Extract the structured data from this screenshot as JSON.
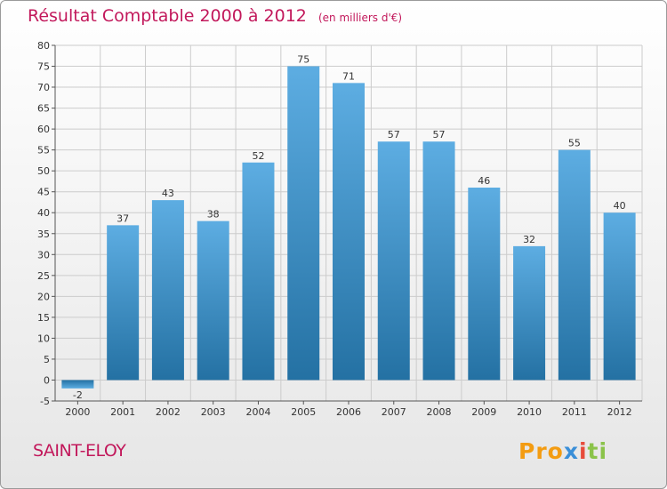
{
  "title": "Résultat Comptable 2000 à 2012",
  "unit": "(en milliers d'€)",
  "commune": "SAINT-ELOY",
  "logo": {
    "p1": "Pro",
    "p2": "x",
    "p3": "i",
    "p4": "ti"
  },
  "colors": {
    "bar_top": "#5dade2",
    "bar_bottom": "#2471a3",
    "grid": "#cccccc",
    "title": "#c2185b"
  },
  "chart_data": {
    "type": "bar",
    "title": "Résultat Comptable 2000 à 2012",
    "xlabel": "",
    "ylabel": "",
    "categories": [
      "2000",
      "2001",
      "2002",
      "2003",
      "2004",
      "2005",
      "2006",
      "2007",
      "2008",
      "2009",
      "2010",
      "2011",
      "2012"
    ],
    "values": [
      -2,
      37,
      43,
      38,
      52,
      75,
      71,
      57,
      57,
      46,
      32,
      55,
      40
    ],
    "ylim": [
      -5,
      80
    ],
    "yticks": [
      -5,
      0,
      5,
      10,
      15,
      20,
      25,
      30,
      35,
      40,
      45,
      50,
      55,
      60,
      65,
      70,
      75,
      80
    ],
    "grid": true
  }
}
